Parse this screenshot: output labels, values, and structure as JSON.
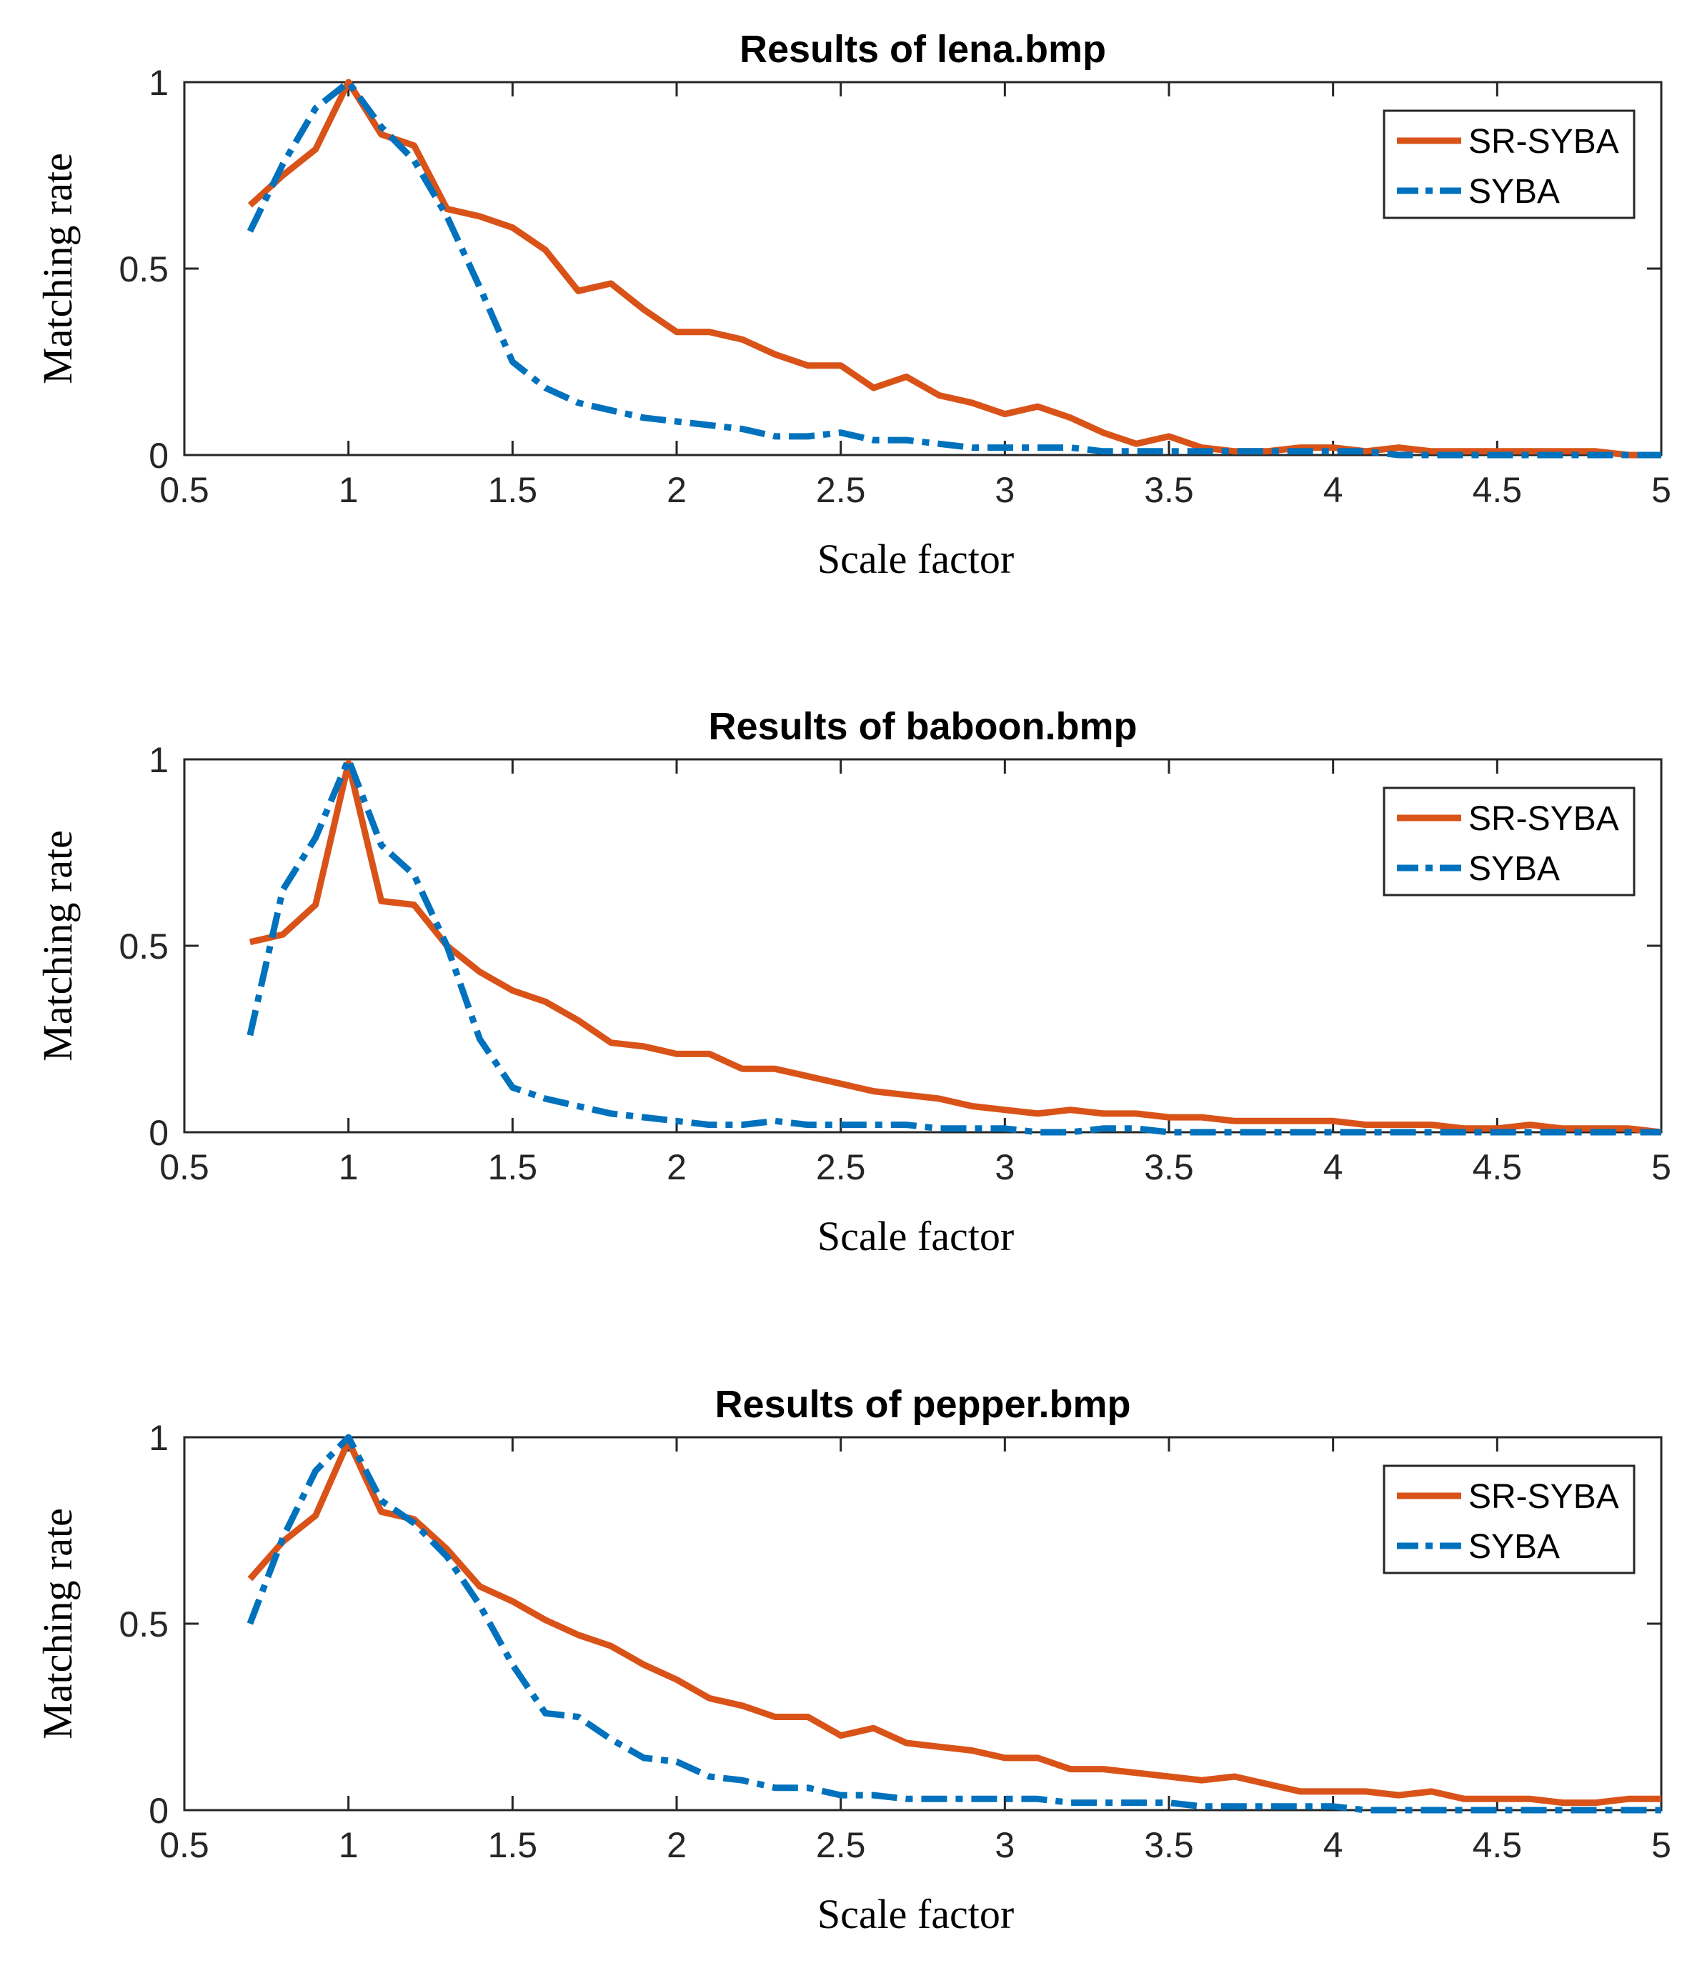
{
  "colors": {
    "sr_syba": "#D95319",
    "syba": "#0072BD"
  },
  "chart_data": [
    {
      "type": "line",
      "title": "Results of lena.bmp",
      "xlabel": "Scale factor",
      "ylabel": "Matching rate",
      "xlim": [
        0.5,
        5
      ],
      "ylim": [
        0,
        1
      ],
      "xticks": [
        "0.5",
        "1",
        "1.5",
        "2",
        "2.5",
        "3",
        "3.5",
        "4",
        "4.5",
        "5"
      ],
      "yticks": [
        "0",
        "0.5",
        "1"
      ],
      "legend_position": "top-right",
      "x": [
        0.7,
        0.8,
        0.9,
        1.0,
        1.1,
        1.2,
        1.3,
        1.4,
        1.5,
        1.6,
        1.7,
        1.8,
        1.9,
        2.0,
        2.1,
        2.2,
        2.3,
        2.4,
        2.5,
        2.6,
        2.7,
        2.8,
        2.9,
        3.0,
        3.1,
        3.2,
        3.3,
        3.4,
        3.5,
        3.6,
        3.7,
        3.8,
        3.9,
        4.0,
        4.1,
        4.2,
        4.3,
        4.4,
        4.5,
        4.6,
        4.7,
        4.8,
        4.9,
        5.0
      ],
      "series": [
        {
          "name": "SR-SYBA",
          "style": "solid",
          "values": [
            0.67,
            0.75,
            0.82,
            1.0,
            0.86,
            0.83,
            0.66,
            0.64,
            0.61,
            0.55,
            0.44,
            0.46,
            0.39,
            0.33,
            0.33,
            0.31,
            0.27,
            0.24,
            0.24,
            0.18,
            0.21,
            0.16,
            0.14,
            0.11,
            0.13,
            0.1,
            0.06,
            0.03,
            0.05,
            0.02,
            0.01,
            0.01,
            0.02,
            0.02,
            0.01,
            0.02,
            0.01,
            0.01,
            0.01,
            0.01,
            0.01,
            0.01,
            0.0,
            0.0
          ]
        },
        {
          "name": "SYBA",
          "style": "dash-dot",
          "values": [
            0.6,
            0.78,
            0.93,
            1.0,
            0.88,
            0.79,
            0.64,
            0.45,
            0.25,
            0.18,
            0.14,
            0.12,
            0.1,
            0.09,
            0.08,
            0.07,
            0.05,
            0.05,
            0.06,
            0.04,
            0.04,
            0.03,
            0.02,
            0.02,
            0.02,
            0.02,
            0.01,
            0.01,
            0.01,
            0.01,
            0.01,
            0.01,
            0.01,
            0.01,
            0.01,
            0.0,
            0.0,
            0.0,
            0.0,
            0.0,
            0.0,
            0.0,
            0.0,
            0.0
          ]
        }
      ]
    },
    {
      "type": "line",
      "title": "Results of baboon.bmp",
      "xlabel": "Scale factor",
      "ylabel": "Matching rate",
      "xlim": [
        0.5,
        5
      ],
      "ylim": [
        0,
        1
      ],
      "xticks": [
        "0.5",
        "1",
        "1.5",
        "2",
        "2.5",
        "3",
        "3.5",
        "4",
        "4.5",
        "5"
      ],
      "yticks": [
        "0",
        "0.5",
        "1"
      ],
      "legend_position": "top-right",
      "x": [
        0.7,
        0.8,
        0.9,
        1.0,
        1.1,
        1.2,
        1.3,
        1.4,
        1.5,
        1.6,
        1.7,
        1.8,
        1.9,
        2.0,
        2.1,
        2.2,
        2.3,
        2.4,
        2.5,
        2.6,
        2.7,
        2.8,
        2.9,
        3.0,
        3.1,
        3.2,
        3.3,
        3.4,
        3.5,
        3.6,
        3.7,
        3.8,
        3.9,
        4.0,
        4.1,
        4.2,
        4.3,
        4.4,
        4.5,
        4.6,
        4.7,
        4.8,
        4.9,
        5.0
      ],
      "series": [
        {
          "name": "SR-SYBA",
          "style": "solid",
          "values": [
            0.51,
            0.53,
            0.61,
            0.99,
            0.62,
            0.61,
            0.5,
            0.43,
            0.38,
            0.35,
            0.3,
            0.24,
            0.23,
            0.21,
            0.21,
            0.17,
            0.17,
            0.15,
            0.13,
            0.11,
            0.1,
            0.09,
            0.07,
            0.06,
            0.05,
            0.06,
            0.05,
            0.05,
            0.04,
            0.04,
            0.03,
            0.03,
            0.03,
            0.03,
            0.02,
            0.02,
            0.02,
            0.01,
            0.01,
            0.02,
            0.01,
            0.01,
            0.01,
            0.0
          ]
        },
        {
          "name": "SYBA",
          "style": "dash-dot",
          "values": [
            0.26,
            0.65,
            0.79,
            1.0,
            0.77,
            0.69,
            0.5,
            0.25,
            0.12,
            0.09,
            0.07,
            0.05,
            0.04,
            0.03,
            0.02,
            0.02,
            0.03,
            0.02,
            0.02,
            0.02,
            0.02,
            0.01,
            0.01,
            0.01,
            0.0,
            0.0,
            0.01,
            0.01,
            0.0,
            0.0,
            0.0,
            0.0,
            0.0,
            0.0,
            0.0,
            0.0,
            0.0,
            0.0,
            0.0,
            0.0,
            0.0,
            0.0,
            0.0,
            0.0
          ]
        }
      ]
    },
    {
      "type": "line",
      "title": "Results of pepper.bmp",
      "xlabel": "Scale factor",
      "ylabel": "Matching rate",
      "xlim": [
        0.5,
        5
      ],
      "ylim": [
        0,
        1
      ],
      "xticks": [
        "0.5",
        "1",
        "1.5",
        "2",
        "2.5",
        "3",
        "3.5",
        "4",
        "4.5",
        "5"
      ],
      "yticks": [
        "0",
        "0.5",
        "1"
      ],
      "legend_position": "top-right",
      "x": [
        0.7,
        0.8,
        0.9,
        1.0,
        1.1,
        1.2,
        1.3,
        1.4,
        1.5,
        1.6,
        1.7,
        1.8,
        1.9,
        2.0,
        2.1,
        2.2,
        2.3,
        2.4,
        2.5,
        2.6,
        2.7,
        2.8,
        2.9,
        3.0,
        3.1,
        3.2,
        3.3,
        3.4,
        3.5,
        3.6,
        3.7,
        3.8,
        3.9,
        4.0,
        4.1,
        4.2,
        4.3,
        4.4,
        4.5,
        4.6,
        4.7,
        4.8,
        4.9,
        5.0
      ],
      "series": [
        {
          "name": "SR-SYBA",
          "style": "solid",
          "values": [
            0.62,
            0.72,
            0.79,
            0.99,
            0.8,
            0.78,
            0.7,
            0.6,
            0.56,
            0.51,
            0.47,
            0.44,
            0.39,
            0.35,
            0.3,
            0.28,
            0.25,
            0.25,
            0.2,
            0.22,
            0.18,
            0.17,
            0.16,
            0.14,
            0.14,
            0.11,
            0.11,
            0.1,
            0.09,
            0.08,
            0.09,
            0.07,
            0.05,
            0.05,
            0.05,
            0.04,
            0.05,
            0.03,
            0.03,
            0.03,
            0.02,
            0.02,
            0.03,
            0.03
          ]
        },
        {
          "name": "SYBA",
          "style": "dash-dot",
          "values": [
            0.5,
            0.73,
            0.91,
            1.0,
            0.83,
            0.77,
            0.68,
            0.55,
            0.39,
            0.26,
            0.25,
            0.19,
            0.14,
            0.13,
            0.09,
            0.08,
            0.06,
            0.06,
            0.04,
            0.04,
            0.03,
            0.03,
            0.03,
            0.03,
            0.03,
            0.02,
            0.02,
            0.02,
            0.02,
            0.01,
            0.01,
            0.01,
            0.01,
            0.01,
            0.0,
            0.0,
            0.0,
            0.0,
            0.0,
            0.0,
            0.0,
            0.0,
            0.0,
            0.0
          ]
        }
      ]
    }
  ]
}
